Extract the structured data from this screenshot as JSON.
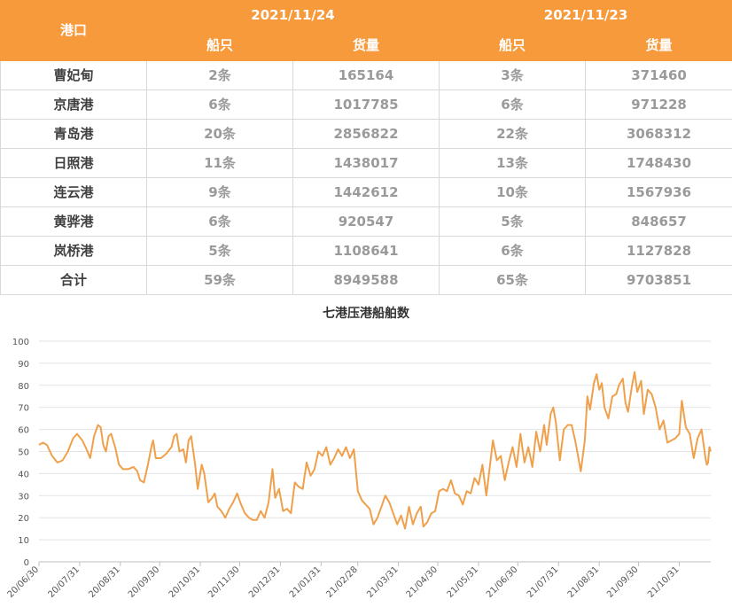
{
  "table": {
    "port_header": "港口",
    "dates": [
      "2021/11/24",
      "2021/11/23"
    ],
    "sub_headers": [
      "船只",
      "货量",
      "船只",
      "货量"
    ],
    "rows": [
      {
        "port": "曹妃甸",
        "ships1": "2条",
        "cargo1": "165164",
        "ships2": "3条",
        "cargo2": "371460"
      },
      {
        "port": "京唐港",
        "ships1": "6条",
        "cargo1": "1017785",
        "ships2": "6条",
        "cargo2": "971228"
      },
      {
        "port": "青岛港",
        "ships1": "20条",
        "cargo1": "2856822",
        "ships2": "22条",
        "cargo2": "3068312"
      },
      {
        "port": "日照港",
        "ships1": "11条",
        "cargo1": "1438017",
        "ships2": "13条",
        "cargo2": "1748430"
      },
      {
        "port": "连云港",
        "ships1": "9条",
        "cargo1": "1442612",
        "ships2": "10条",
        "cargo2": "1567936"
      },
      {
        "port": "黄骅港",
        "ships1": "6条",
        "cargo1": "920547",
        "ships2": "5条",
        "cargo2": "848657"
      },
      {
        "port": "岚桥港",
        "ships1": "5条",
        "cargo1": "1108641",
        "ships2": "6条",
        "cargo2": "1127828"
      },
      {
        "port": "合计",
        "ships1": "59条",
        "cargo1": "8949588",
        "ships2": "65条",
        "cargo2": "9703851"
      }
    ]
  },
  "chart_data": {
    "type": "line",
    "title": "七港压港船舶数",
    "ylim": [
      0,
      100
    ],
    "yticks": [
      0,
      10,
      20,
      30,
      40,
      50,
      60,
      70,
      80,
      90,
      100
    ],
    "grid": true,
    "legend": "none",
    "color": "#f0a04b",
    "x_start": "2020-06-30",
    "x_end": "2021-11-24",
    "xticks": [
      "20/06/30",
      "20/07/31",
      "20/08/31",
      "20/09/30",
      "20/10/31",
      "20/11/30",
      "20/12/31",
      "21/01/31",
      "21/02/28",
      "21/03/31",
      "21/04/30",
      "21/05/31",
      "21/06/30",
      "21/07/31",
      "21/08/31",
      "21/09/30",
      "21/10/31"
    ],
    "series": [
      {
        "points": [
          [
            "2020-06-30",
            53
          ],
          [
            "2020-07-03",
            54
          ],
          [
            "2020-07-06",
            53
          ],
          [
            "2020-07-10",
            48
          ],
          [
            "2020-07-14",
            45
          ],
          [
            "2020-07-18",
            46
          ],
          [
            "2020-07-22",
            50
          ],
          [
            "2020-07-26",
            56
          ],
          [
            "2020-07-29",
            58
          ],
          [
            "2020-08-02",
            55
          ],
          [
            "2020-08-06",
            50
          ],
          [
            "2020-08-08",
            47
          ],
          [
            "2020-08-11",
            57
          ],
          [
            "2020-08-14",
            62
          ],
          [
            "2020-08-16",
            61
          ],
          [
            "2020-08-18",
            53
          ],
          [
            "2020-08-20",
            50
          ],
          [
            "2020-08-22",
            57
          ],
          [
            "2020-08-24",
            58
          ],
          [
            "2020-08-27",
            52
          ],
          [
            "2020-08-30",
            44
          ],
          [
            "2020-09-02",
            42
          ],
          [
            "2020-09-06",
            42
          ],
          [
            "2020-09-10",
            43
          ],
          [
            "2020-09-13",
            41
          ],
          [
            "2020-09-15",
            37
          ],
          [
            "2020-09-18",
            36
          ],
          [
            "2020-09-21",
            44
          ],
          [
            "2020-09-24",
            53
          ],
          [
            "2020-09-25",
            55
          ],
          [
            "2020-09-27",
            47
          ],
          [
            "2020-10-01",
            47
          ],
          [
            "2020-10-05",
            49
          ],
          [
            "2020-10-09",
            52
          ],
          [
            "2020-10-11",
            57
          ],
          [
            "2020-10-13",
            58
          ],
          [
            "2020-10-15",
            50
          ],
          [
            "2020-10-18",
            51
          ],
          [
            "2020-10-20",
            45
          ],
          [
            "2020-10-22",
            55
          ],
          [
            "2020-10-24",
            57
          ],
          [
            "2020-10-27",
            44
          ],
          [
            "2020-10-29",
            33
          ],
          [
            "2020-11-01",
            44
          ],
          [
            "2020-11-03",
            40
          ],
          [
            "2020-11-06",
            27
          ],
          [
            "2020-11-09",
            29
          ],
          [
            "2020-11-11",
            31
          ],
          [
            "2020-11-13",
            25
          ],
          [
            "2020-11-16",
            23
          ],
          [
            "2020-11-19",
            20
          ],
          [
            "2020-11-22",
            24
          ],
          [
            "2020-11-25",
            27
          ],
          [
            "2020-11-28",
            31
          ],
          [
            "2020-12-01",
            26
          ],
          [
            "2020-12-04",
            22
          ],
          [
            "2020-12-07",
            20
          ],
          [
            "2020-12-10",
            19
          ],
          [
            "2020-12-13",
            19
          ],
          [
            "2020-12-16",
            23
          ],
          [
            "2020-12-19",
            20
          ],
          [
            "2020-12-22",
            27
          ],
          [
            "2020-12-25",
            42
          ],
          [
            "2020-12-27",
            29
          ],
          [
            "2020-12-30",
            33
          ],
          [
            "2021-01-02",
            23
          ],
          [
            "2021-01-05",
            24
          ],
          [
            "2021-01-08",
            22
          ],
          [
            "2021-01-11",
            36
          ],
          [
            "2021-01-14",
            34
          ],
          [
            "2021-01-17",
            33
          ],
          [
            "2021-01-20",
            45
          ],
          [
            "2021-01-23",
            39
          ],
          [
            "2021-01-26",
            42
          ],
          [
            "2021-01-29",
            50
          ],
          [
            "2021-02-01",
            48
          ],
          [
            "2021-02-04",
            52
          ],
          [
            "2021-02-07",
            44
          ],
          [
            "2021-02-10",
            47
          ],
          [
            "2021-02-13",
            51
          ],
          [
            "2021-02-16",
            48
          ],
          [
            "2021-02-19",
            52
          ],
          [
            "2021-02-22",
            47
          ],
          [
            "2021-02-25",
            51
          ],
          [
            "2021-02-28",
            32
          ],
          [
            "2021-03-03",
            28
          ],
          [
            "2021-03-06",
            26
          ],
          [
            "2021-03-09",
            24
          ],
          [
            "2021-03-12",
            17
          ],
          [
            "2021-03-15",
            20
          ],
          [
            "2021-03-18",
            25
          ],
          [
            "2021-03-21",
            30
          ],
          [
            "2021-03-24",
            27
          ],
          [
            "2021-03-27",
            22
          ],
          [
            "2021-03-30",
            17
          ],
          [
            "2021-04-02",
            21
          ],
          [
            "2021-04-05",
            15
          ],
          [
            "2021-04-08",
            25
          ],
          [
            "2021-04-11",
            17
          ],
          [
            "2021-04-14",
            22
          ],
          [
            "2021-04-17",
            25
          ],
          [
            "2021-04-19",
            16
          ],
          [
            "2021-04-22",
            18
          ],
          [
            "2021-04-25",
            22
          ],
          [
            "2021-04-28",
            23
          ],
          [
            "2021-05-01",
            32
          ],
          [
            "2021-05-04",
            33
          ],
          [
            "2021-05-07",
            32
          ],
          [
            "2021-05-10",
            37
          ],
          [
            "2021-05-13",
            31
          ],
          [
            "2021-05-16",
            30
          ],
          [
            "2021-05-19",
            26
          ],
          [
            "2021-05-22",
            32
          ],
          [
            "2021-05-25",
            31
          ],
          [
            "2021-05-28",
            38
          ],
          [
            "2021-05-31",
            35
          ],
          [
            "2021-06-03",
            44
          ],
          [
            "2021-06-06",
            30
          ],
          [
            "2021-06-09",
            45
          ],
          [
            "2021-06-11",
            55
          ],
          [
            "2021-06-14",
            46
          ],
          [
            "2021-06-17",
            48
          ],
          [
            "2021-06-20",
            37
          ],
          [
            "2021-06-23",
            45
          ],
          [
            "2021-06-26",
            52
          ],
          [
            "2021-06-29",
            43
          ],
          [
            "2021-07-02",
            58
          ],
          [
            "2021-07-05",
            45
          ],
          [
            "2021-07-08",
            52
          ],
          [
            "2021-07-11",
            43
          ],
          [
            "2021-07-14",
            59
          ],
          [
            "2021-07-17",
            50
          ],
          [
            "2021-07-20",
            62
          ],
          [
            "2021-07-22",
            53
          ],
          [
            "2021-07-25",
            67
          ],
          [
            "2021-07-27",
            70
          ],
          [
            "2021-07-29",
            63
          ],
          [
            "2021-08-01",
            46
          ],
          [
            "2021-08-04",
            60
          ],
          [
            "2021-08-07",
            62
          ],
          [
            "2021-08-10",
            62
          ],
          [
            "2021-08-13",
            54
          ],
          [
            "2021-08-17",
            41
          ],
          [
            "2021-08-20",
            55
          ],
          [
            "2021-08-22",
            75
          ],
          [
            "2021-08-24",
            69
          ],
          [
            "2021-08-27",
            81
          ],
          [
            "2021-08-29",
            85
          ],
          [
            "2021-08-31",
            78
          ],
          [
            "2021-09-02",
            81
          ],
          [
            "2021-09-04",
            70
          ],
          [
            "2021-09-07",
            65
          ],
          [
            "2021-09-10",
            75
          ],
          [
            "2021-09-13",
            76
          ],
          [
            "2021-09-15",
            80
          ],
          [
            "2021-09-18",
            83
          ],
          [
            "2021-09-20",
            72
          ],
          [
            "2021-09-22",
            68
          ],
          [
            "2021-09-25",
            80
          ],
          [
            "2021-09-27",
            86
          ],
          [
            "2021-09-29",
            77
          ],
          [
            "2021-10-02",
            82
          ],
          [
            "2021-10-04",
            67
          ],
          [
            "2021-10-07",
            78
          ],
          [
            "2021-10-10",
            76
          ],
          [
            "2021-10-13",
            70
          ],
          [
            "2021-10-16",
            60
          ],
          [
            "2021-10-19",
            64
          ],
          [
            "2021-10-22",
            54
          ],
          [
            "2021-10-25",
            55
          ],
          [
            "2021-10-28",
            56
          ],
          [
            "2021-10-31",
            58
          ],
          [
            "2021-11-02",
            73
          ],
          [
            "2021-11-05",
            61
          ],
          [
            "2021-11-08",
            58
          ],
          [
            "2021-11-11",
            47
          ],
          [
            "2021-11-14",
            56
          ],
          [
            "2021-11-17",
            60
          ],
          [
            "2021-11-20",
            47
          ],
          [
            "2021-11-21",
            44
          ],
          [
            "2021-11-22",
            45
          ],
          [
            "2021-11-23",
            52
          ],
          [
            "2021-11-24",
            50
          ]
        ]
      }
    ]
  }
}
